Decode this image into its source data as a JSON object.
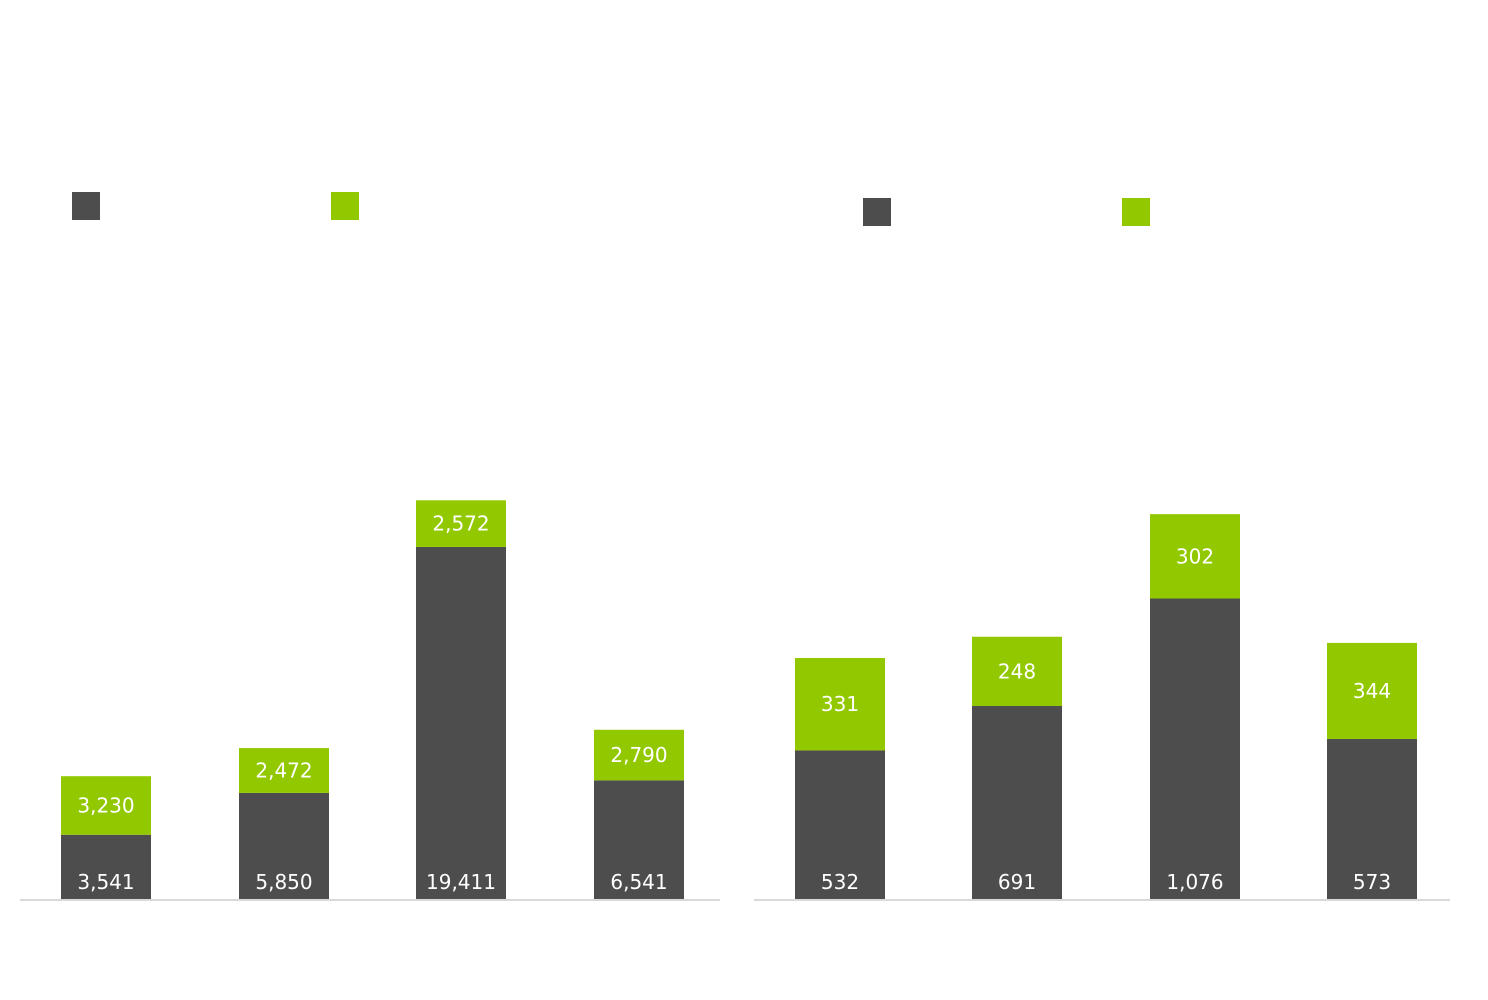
{
  "colors": {
    "series_dark": "#4d4d4d",
    "series_green": "#92c800",
    "axis": "#d9d9d9",
    "label": "#ffffff"
  },
  "chart_data": [
    {
      "type": "bar",
      "stacked": true,
      "categories": [
        "",
        "",
        "",
        ""
      ],
      "series": [
        {
          "color": "#4d4d4d",
          "values": [
            3541,
            5850,
            19411,
            6541
          ]
        },
        {
          "color": "#92c800",
          "values": [
            3230,
            2472,
            2572,
            2790
          ]
        }
      ],
      "value_labels": [
        [
          "3,541",
          "5,850",
          "19,411",
          "6,541"
        ],
        [
          "3,230",
          "2,472",
          "2,572",
          "2,790"
        ]
      ],
      "legend": {
        "position": "top-left",
        "entries": 2
      },
      "grid": false,
      "ylim": [
        0,
        22000
      ]
    },
    {
      "type": "bar",
      "stacked": true,
      "categories": [
        "",
        "",
        "",
        ""
      ],
      "series": [
        {
          "color": "#4d4d4d",
          "values": [
            532,
            691,
            1076,
            573
          ]
        },
        {
          "color": "#92c800",
          "values": [
            331,
            248,
            302,
            344
          ]
        }
      ],
      "value_labels": [
        [
          "532",
          "691",
          "1,076",
          "573"
        ],
        [
          "331",
          "248",
          "302",
          "344"
        ]
      ],
      "legend": {
        "position": "top-left",
        "entries": 2
      },
      "grid": false,
      "ylim": [
        0,
        1400
      ]
    }
  ]
}
